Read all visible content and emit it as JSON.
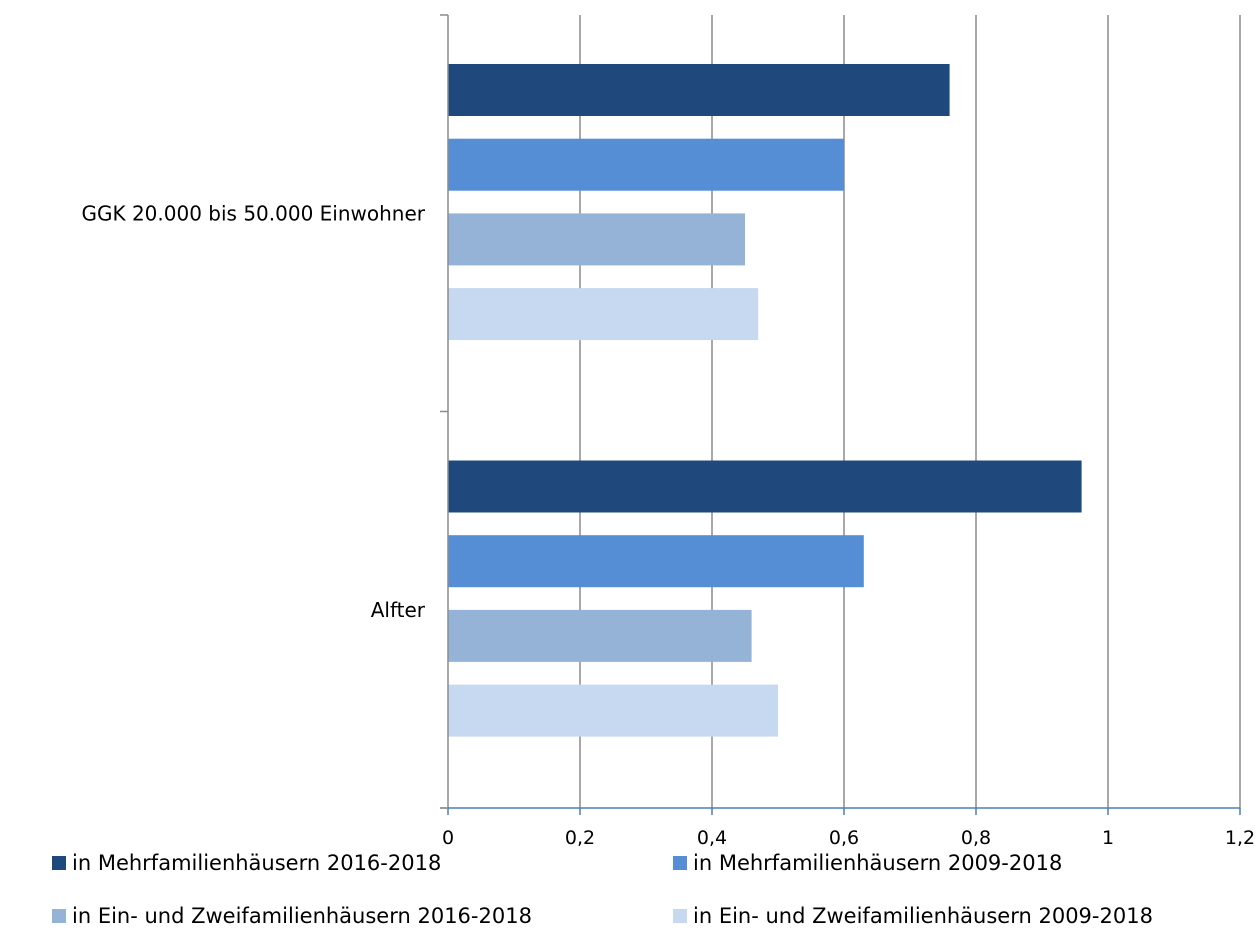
{
  "chart_data": {
    "type": "bar",
    "orientation": "horizontal",
    "categories": [
      "GGK 20.000 bis 50.000 Einwohner",
      "Alfter"
    ],
    "series": [
      {
        "name": "in Mehrfamilienhäusern 2016-2018",
        "color": "#1F497D",
        "values": [
          0.76,
          0.96
        ]
      },
      {
        "name": "in Mehrfamilienhäusern 2009-2018",
        "color": "#558ED5",
        "values": [
          0.6,
          0.63
        ]
      },
      {
        "name": "in Ein- und Zweifamilienhäusern 2016-2018",
        "color": "#95B3D7",
        "values": [
          0.45,
          0.46
        ]
      },
      {
        "name": "in Ein- und Zweifamilienhäusern 2009-2018",
        "color": "#C6D9F1",
        "values": [
          0.47,
          0.5
        ]
      }
    ],
    "xlim": [
      0,
      1.2
    ],
    "xticks": [
      "0",
      "0,2",
      "0,4",
      "0,6",
      "0,8",
      "1",
      "1,2"
    ],
    "grid": true,
    "legend_position": "bottom",
    "title": "",
    "xlabel": "",
    "ylabel": ""
  }
}
